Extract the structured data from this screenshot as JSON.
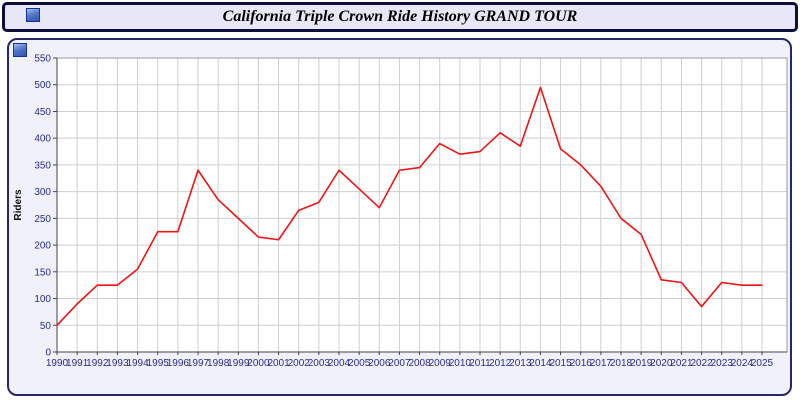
{
  "header": {
    "title": "California Triple Crown Ride History GRAND TOUR"
  },
  "icons": {
    "titlebar_icon": "blue-square-icon",
    "panel_icon": "blue-square-icon"
  },
  "chart_data": {
    "type": "line",
    "title": "California Triple Crown Ride History GRAND TOUR",
    "xlabel": "",
    "ylabel": "Riders",
    "grid": true,
    "legend": "none",
    "ylim": [
      0,
      550
    ],
    "ytick_step": 50,
    "yticks": [
      0,
      50,
      100,
      150,
      200,
      250,
      300,
      350,
      400,
      450,
      500,
      550
    ],
    "x": [
      1990,
      1991,
      1992,
      1993,
      1994,
      1995,
      1996,
      1997,
      1998,
      1999,
      2000,
      2001,
      2002,
      2003,
      2004,
      2005,
      2006,
      2007,
      2008,
      2009,
      2010,
      2011,
      2012,
      2013,
      2014,
      2015,
      2016,
      2017,
      2018,
      2019,
      2020,
      2021,
      2022,
      2023,
      2024,
      2025
    ],
    "series": [
      {
        "name": "Riders",
        "color": "#f01414",
        "values": [
          50,
          90,
          125,
          125,
          155,
          225,
          225,
          340,
          285,
          250,
          215,
          210,
          265,
          280,
          340,
          305,
          270,
          340,
          345,
          390,
          370,
          375,
          410,
          385,
          495,
          380,
          350,
          310,
          250,
          220,
          135,
          130,
          85,
          130,
          125,
          125
        ]
      }
    ],
    "colors": {
      "tick_text": "#2b2b8f",
      "gridline": "#cfcfcf",
      "plot_background": "#ffffff",
      "panel_background": "#f1f1fb",
      "panel_border": "#26266b",
      "header_background": "#e7e7f8",
      "header_border": "#0d0d3a"
    }
  }
}
